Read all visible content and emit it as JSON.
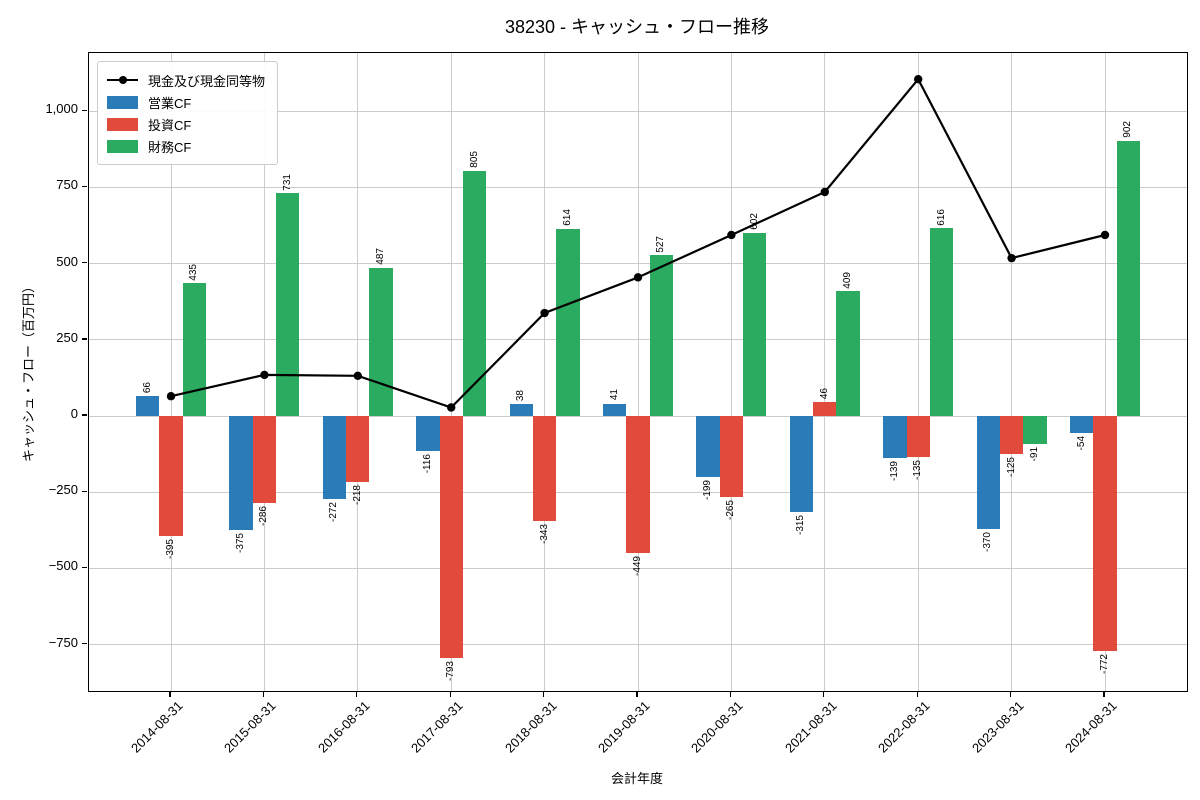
{
  "chart_data": {
    "type": "bar",
    "title": "38230 - キャッシュ・フロー推移",
    "xlabel": "会計年度",
    "ylabel": "キャッシュ・フロー（百万円）",
    "categories": [
      "2014-08-31",
      "2015-08-31",
      "2016-08-31",
      "2017-08-31",
      "2018-08-31",
      "2019-08-31",
      "2020-08-31",
      "2021-08-31",
      "2022-08-31",
      "2023-08-31",
      "2024-08-31"
    ],
    "series": [
      {
        "name": "現金及び現金同等物",
        "type": "line",
        "color": "#000000",
        "values": [
          65,
          135,
          132,
          28,
          338,
          455,
          594,
          735,
          1105,
          518,
          594
        ]
      },
      {
        "name": "営業CF",
        "type": "bar",
        "color": "#2b7bb9",
        "values": [
          66,
          -375,
          -272,
          -116,
          38,
          41,
          -199,
          -315,
          -139,
          -370,
          -54
        ]
      },
      {
        "name": "投資CF",
        "type": "bar",
        "color": "#e24b3c",
        "values": [
          -395,
          -286,
          -218,
          -793,
          -343,
          -449,
          -265,
          46,
          -135,
          -125,
          -772
        ]
      },
      {
        "name": "財務CF",
        "type": "bar",
        "color": "#2bab60",
        "values": [
          435,
          731,
          487,
          805,
          614,
          527,
          602,
          409,
          616,
          -91,
          902
        ]
      }
    ],
    "bar_labels_visible": true,
    "yticks": [
      1000,
      750,
      500,
      250,
      0,
      -250,
      -500,
      -750
    ],
    "ytick_labels": [
      "1,000",
      "750",
      "500",
      "250",
      "0",
      "−250",
      "−500",
      "−750"
    ],
    "ylim": [
      -902,
      1191
    ],
    "grid": true,
    "legend_position": "upper left",
    "xtick_rotation": 45,
    "bar_label_rotation": 90
  }
}
